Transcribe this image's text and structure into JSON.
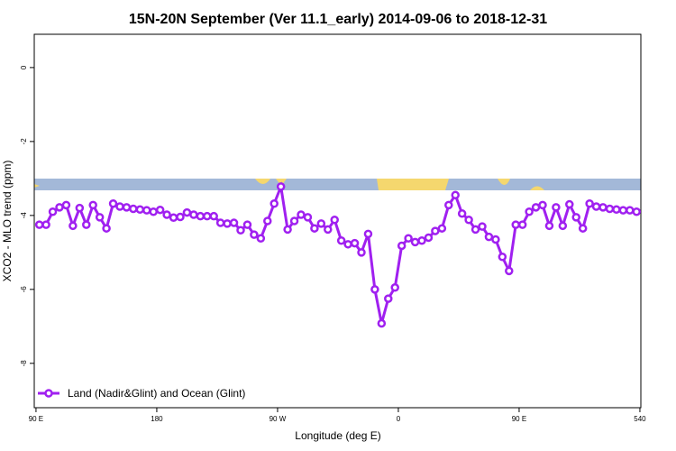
{
  "chart_data": {
    "type": "line",
    "title": "15N-20N September (Ver 11.1_early)   2014-09-06 to 2018-12-31",
    "xlabel": "Longitude (deg E)",
    "ylabel": "XCO2 - MLO trend (ppm)",
    "xlim": [
      88.7,
      540.7
    ],
    "ylim": [
      -9.2,
      0.9
    ],
    "xticks": [
      {
        "value": 90,
        "label": "90 E"
      },
      180,
      {
        "value": 270,
        "label": "90 W"
      },
      {
        "value": 360,
        "label": "0"
      },
      {
        "value": 450,
        "label": "90 E"
      },
      540
    ],
    "yticks": [
      0,
      -2,
      -4,
      -6,
      -8
    ],
    "legend": "bottom-left",
    "series": [
      {
        "name": "Land (Nadir&Glint) and Ocean (Glint)",
        "color": "#a020f0",
        "x": [
          92.5,
          97.5,
          102.5,
          107.5,
          112.5,
          117.5,
          122.5,
          127.5,
          132.5,
          137.5,
          142.5,
          147.5,
          152.5,
          157.5,
          162.5,
          167.5,
          172.5,
          177.5,
          182.5,
          187.5,
          192.5,
          197.5,
          202.5,
          207.5,
          212.5,
          217.5,
          222.5,
          227.5,
          232.5,
          237.5,
          242.5,
          247.5,
          252.5,
          257.5,
          262.5,
          267.5,
          272.5,
          277.5,
          282.5,
          287.5,
          292.5,
          297.5,
          302.5,
          307.5,
          312.5,
          317.5,
          322.5,
          327.5,
          332.5,
          337.5,
          342.5,
          347.5,
          352.5,
          357.5,
          362.5,
          367.5,
          372.5,
          377.5,
          382.5,
          387.5,
          392.5,
          397.5,
          402.5,
          407.5,
          412.5,
          417.5,
          422.5,
          427.5,
          432.5,
          437.5,
          442.5,
          447.5,
          452.5,
          457.5,
          462.5,
          467.5,
          472.5,
          477.5,
          482.5,
          487.5,
          492.5,
          497.5,
          502.5,
          507.5,
          512.5,
          517.5,
          522.5,
          527.5,
          532.5,
          537.5
        ],
        "values": [
          -4.25,
          -4.25,
          -3.9,
          -3.78,
          -3.72,
          -4.28,
          -3.8,
          -4.25,
          -3.72,
          -4.05,
          -4.35,
          -3.68,
          -3.76,
          -3.78,
          -3.82,
          -3.84,
          -3.86,
          -3.9,
          -3.85,
          -3.98,
          -4.06,
          -4.04,
          -3.92,
          -3.98,
          -4.02,
          -4.02,
          -4.02,
          -4.2,
          -4.22,
          -4.2,
          -4.4,
          -4.25,
          -4.52,
          -4.62,
          -4.15,
          -3.68,
          -3.22,
          -4.38,
          -4.15,
          -3.98,
          -4.05,
          -4.35,
          -4.22,
          -4.38,
          -4.12,
          -4.68,
          -4.78,
          -4.75,
          -5.0,
          -4.5,
          -6.0,
          -6.92,
          -6.25,
          -5.95,
          -4.82,
          -4.62,
          -4.72,
          -4.68,
          -4.6,
          -4.42,
          -4.35,
          -3.72,
          -3.45,
          -3.95,
          -4.12,
          -4.38,
          -4.3,
          -4.58,
          -4.65,
          -5.12,
          -5.5,
          -4.25,
          -4.25,
          -3.9,
          -3.78,
          -3.72,
          -4.28,
          -3.78,
          -4.28,
          -3.7,
          -4.05,
          -4.35,
          -3.68,
          -3.76,
          -3.78,
          -3.82,
          -3.84,
          -3.86,
          -3.86,
          -3.9
        ]
      }
    ]
  }
}
